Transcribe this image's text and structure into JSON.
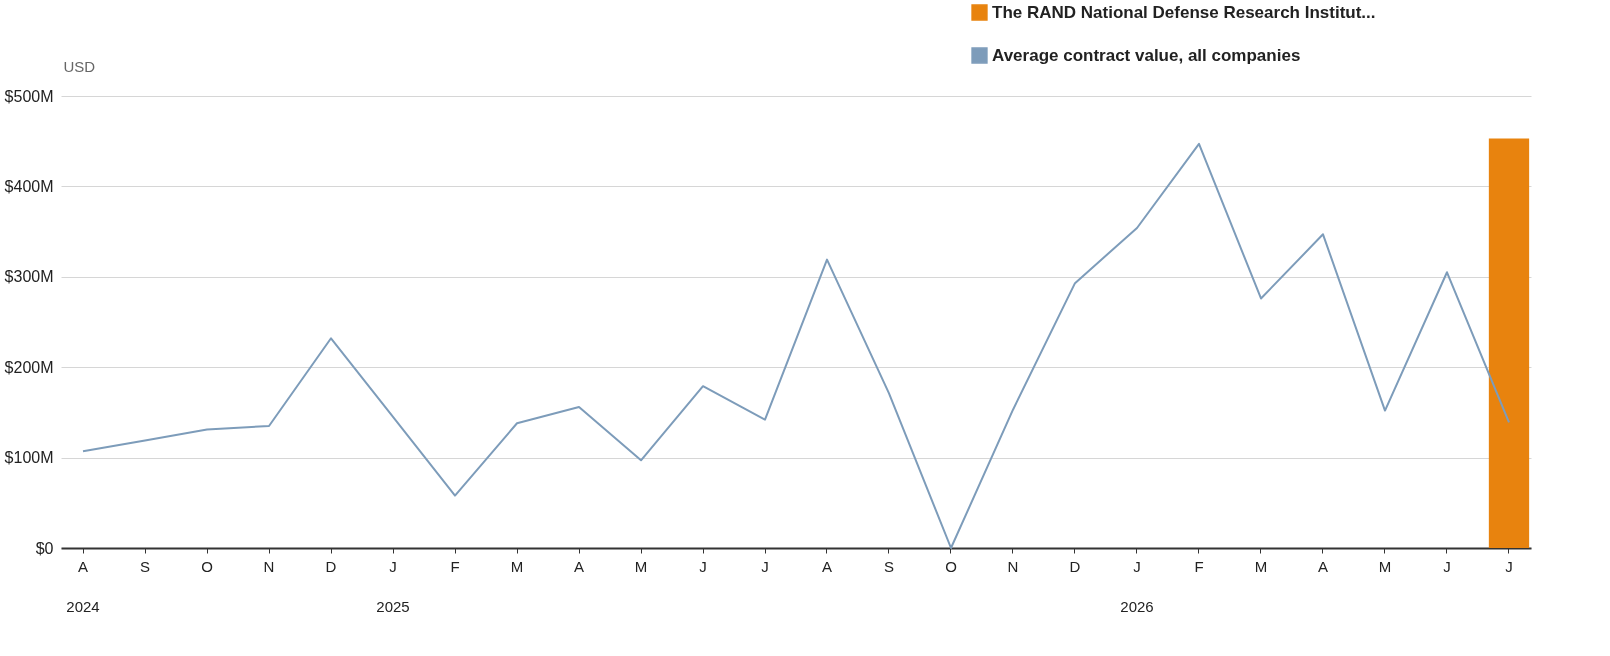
{
  "chart_data": {
    "type": "line",
    "ylabel": "USD",
    "categories": [
      "A\n2024",
      "S",
      "O",
      "N",
      "D",
      "J\n2025",
      "F",
      "M",
      "A",
      "M",
      "J",
      "J",
      "A",
      "S",
      "O",
      "N",
      "D",
      "J\n2026",
      "F",
      "M",
      "A",
      "M",
      "J",
      "J"
    ],
    "series": [
      {
        "name": "The RAND National Defense Research Institut...",
        "type": "bar",
        "color": "#e8830e",
        "values": [
          null,
          null,
          null,
          null,
          null,
          null,
          null,
          null,
          null,
          null,
          null,
          null,
          null,
          null,
          null,
          null,
          null,
          null,
          null,
          null,
          null,
          null,
          null,
          453
        ]
      },
      {
        "name": "Average contract value, all companies",
        "color": "#7d9cba",
        "values": [
          107,
          119,
          131,
          135,
          232,
          145,
          58,
          138,
          156,
          97,
          179,
          142,
          319,
          171,
          0,
          153,
          293,
          354,
          447,
          276,
          347,
          152,
          305,
          139
        ]
      }
    ],
    "ylim": [
      0,
      500
    ],
    "yticks": [
      {
        "value": 0,
        "label": "$0"
      },
      {
        "value": 100,
        "label": "$100M"
      },
      {
        "value": 200,
        "label": "$200M"
      },
      {
        "value": 300,
        "label": "$300M"
      },
      {
        "value": 400,
        "label": "$400M"
      },
      {
        "value": 500,
        "label": "$500M"
      }
    ],
    "grid": "y",
    "legend": "top right",
    "marker": "none",
    "line_style": "solid"
  }
}
